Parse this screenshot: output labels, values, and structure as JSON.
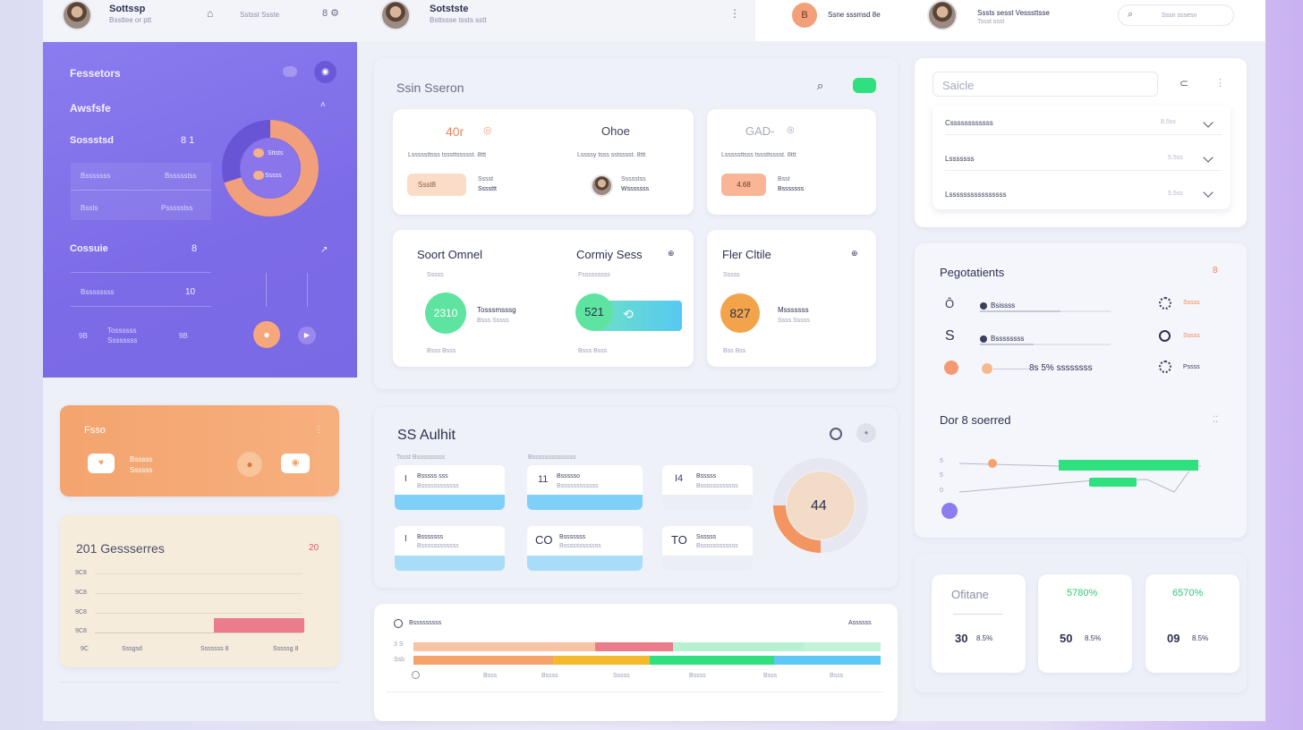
{
  "header": {
    "user1": {
      "name": "Sottssp",
      "sub": "Bssttee or ptt"
    },
    "nav_text": "Sstsst Ssste",
    "user2": {
      "name": "Sotstste",
      "sub": "Bsttssse tssts sstt"
    },
    "badge_letter": "B",
    "badge_text": "Ssne sssmsd 8e",
    "user3": {
      "name": "Sssts sesst Vesssttsse",
      "sub": "Tssst ssst"
    },
    "search_placeholder": "Sssn sssesn"
  },
  "sidebar": {
    "title": "Fessetors",
    "section1": "Awsfsfe",
    "section2": {
      "label": "Sossstsd",
      "value": "8 1"
    },
    "rows": [
      {
        "a": "Bsssssss",
        "b": "Bssssstss"
      },
      {
        "a": "Bssts",
        "b": "Pssssstss"
      }
    ],
    "donut": {
      "l1": "Sttsts",
      "l2": "Sssss",
      "percent": 70
    },
    "section3": {
      "label": "Cossuie",
      "value": "8"
    },
    "row3": {
      "a": "Bssssssss",
      "b": "10"
    },
    "footer": {
      "a": "9B",
      "b": "Tossssss\nSsssssss",
      "c": "9B"
    }
  },
  "promo": {
    "title": "Fsso",
    "text1": "Bsssss",
    "text2": "Ssssss"
  },
  "mini_chart": {
    "title": "201 Gessserres",
    "badge": "20",
    "y_labels": [
      "9C8",
      "9C8",
      "9C8",
      "9C8",
      "9C"
    ],
    "x_labels": [
      "Sssgsd",
      "Sssssss 8",
      "Sssssg 8"
    ]
  },
  "section_main": {
    "title": "Ssin Sseron",
    "stats": [
      {
        "value": "40r",
        "desc": "Lsssssttsss tsssttssssst. 8ttt",
        "chip": "Ssst8",
        "label1": "Sssst",
        "label2": "Ssssttt"
      },
      {
        "value": "Ohoe",
        "desc": "Lssssy tsss sstsssst. 8ttt",
        "label1": "Ssssstss",
        "label2": "Wsssssss"
      },
      {
        "value": "GAD-",
        "desc": "Lsssssttsss tsssttsssst. 8ttt",
        "chip": "4.68",
        "label1": "Bsst",
        "label2": "Bsssssss"
      }
    ],
    "metrics": [
      {
        "title": "Soort Omnel",
        "sub": "Sssss",
        "value": "2310",
        "l1": "Tosssmsssg",
        "l2": "Bsss Sssss",
        "foot": "Bsss Bsss"
      },
      {
        "title": "Cormiy Sess",
        "sub": "Fsssssssss",
        "value": "521",
        "foot": "Bsss Bsss"
      },
      {
        "title": "Fler Cltile",
        "sub": "Sssss",
        "value": "827",
        "l1": "Msssssss",
        "l2": "Ssss Sssss",
        "foot": "Bss Bss"
      }
    ]
  },
  "audit": {
    "title": "SS Aulhit",
    "col1": "Tssst Bsssssssss",
    "col2": "Bssssssssssssss",
    "items": [
      {
        "icon": "I",
        "t1": "Bsssss sss",
        "t2": "Bssssssssssss"
      },
      {
        "icon": "11",
        "t1": "Bssssso",
        "t2": "Bssssssssssss"
      },
      {
        "icon": "I4",
        "t1": "Bsssss",
        "t2": "Bssssssssssss"
      },
      {
        "icon": "I",
        "t1": "Bsssssss",
        "t2": "Bssssssssssss"
      },
      {
        "icon": "CO",
        "t1": "Bsssssss",
        "t2": "Bssssssssssss"
      },
      {
        "icon": "TO",
        "t1": "Ssssss",
        "t2": "Bssssssssssss"
      }
    ],
    "donut_value": "44"
  },
  "timeline": {
    "label": "Bsssssssss",
    "right": "Assssss",
    "y": [
      "3 S",
      "Ssb"
    ],
    "x": [
      "Bsss",
      "Bssss",
      "Sssss",
      "Bssss",
      "Bsss",
      "Bsss"
    ]
  },
  "selects": {
    "placeholder": "Saicle",
    "rows": [
      {
        "label": "Cssssssssssss",
        "value": "8.5ss"
      },
      {
        "label": "Lsssssss",
        "value": "5.5ss"
      },
      {
        "label": "Lssssssssssssssss",
        "value": "5.5ss"
      }
    ]
  },
  "progress": {
    "title": "Pegotatients",
    "badge": "8",
    "rows": [
      {
        "icon": "Ô",
        "label": "Bsissss",
        "value": "Sssss"
      },
      {
        "icon": "S",
        "label": "Bssssssss",
        "value": "Sssss"
      },
      {
        "icon": "",
        "label": "8s 5% ssssssss",
        "value": "Pssss"
      }
    ]
  },
  "line_chart": {
    "title": "Dor 8 soerred",
    "y": [
      "5",
      "5",
      "0"
    ]
  },
  "kpis": [
    {
      "title": "Ofitane",
      "value": "30",
      "unit": "8.5%",
      "color": "#3b3f5c"
    },
    {
      "title": "5780%",
      "value": "50",
      "unit": "8.5%",
      "color": "#34c77b"
    },
    {
      "title": "6570%",
      "value": "09",
      "unit": "8.5%",
      "color": "#34c77b"
    }
  ],
  "colors": {
    "purple": "#7c6be6",
    "orange": "#f5a26b",
    "green": "#2fe07f",
    "blue": "#5ec8f5",
    "pink": "#ea7c8b"
  }
}
